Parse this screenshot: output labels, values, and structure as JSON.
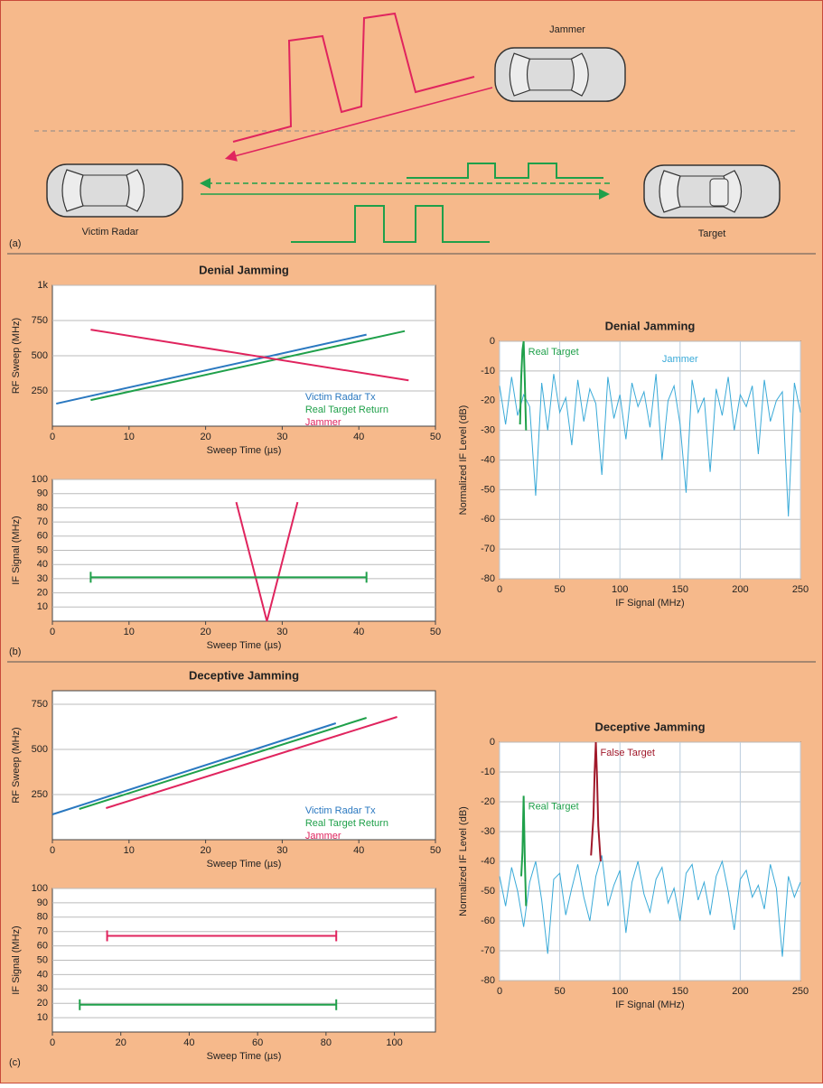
{
  "diagram": {
    "panels": [
      "(a)",
      "(b)",
      "(c)"
    ],
    "jammer": "Jammer",
    "victim": "Victim Radar",
    "target": "Target"
  },
  "chart_data": [
    {
      "type": "line",
      "title": "Denial Jamming",
      "xlabel": "Sweep Time (µs)",
      "ylabel": "RF Sweep (MHz)",
      "xlim": [
        0,
        50
      ],
      "xticks": [
        0,
        10,
        20,
        30,
        40,
        50
      ],
      "ylim": [
        0,
        1000
      ],
      "yticks": [
        250,
        500,
        750,
        {
          "value": 1000,
          "label": "1k"
        }
      ],
      "grid": "y",
      "legend": "lower right",
      "series": [
        {
          "name": "Victim Radar Tx",
          "color": "#2a78c0",
          "x": [
            0.5,
            41
          ],
          "values": [
            160,
            650
          ]
        },
        {
          "name": "Real Target Return",
          "color": "#1fa04a",
          "x": [
            5,
            46
          ],
          "values": [
            185,
            675
          ]
        },
        {
          "name": "Jammer",
          "color": "#e0245e",
          "x": [
            5,
            46.5
          ],
          "values": [
            685,
            325
          ]
        }
      ]
    },
    {
      "type": "line",
      "xlabel": "Sweep Time (µs)",
      "ylabel": "IF Signal (MHz)",
      "xlim": [
        0,
        50
      ],
      "xticks": [
        0,
        10,
        20,
        30,
        40,
        50
      ],
      "ylim": [
        0,
        100
      ],
      "yticks": [
        10,
        20,
        30,
        40,
        50,
        60,
        70,
        80,
        90,
        100
      ],
      "grid": "y",
      "end_caps": true,
      "series": [
        {
          "color": "#e0245e",
          "x": [
            24,
            28,
            32
          ],
          "values": [
            84,
            0,
            84
          ]
        },
        {
          "color": "#1fa04a",
          "x": [
            5,
            41
          ],
          "values": [
            31,
            31
          ]
        }
      ]
    },
    {
      "type": "line",
      "title": "Denial Jamming",
      "xlabel": "IF Signal (MHz)",
      "ylabel": "Normalized IF Level (dB)",
      "xlim": [
        0,
        250
      ],
      "xticks": [
        0,
        50,
        100,
        150,
        200,
        250
      ],
      "ylim": [
        -80,
        0
      ],
      "yticks": [
        -80,
        -70,
        -60,
        -50,
        -40,
        -30,
        -20,
        -10,
        0
      ],
      "grid": "both",
      "labels": "series",
      "series": [
        {
          "name": "Jammer",
          "color": "#3aaad8",
          "x": [
            0,
            5,
            10,
            15,
            20,
            25,
            30,
            35,
            40,
            45,
            50,
            55,
            60,
            65,
            70,
            75,
            80,
            85,
            90,
            95,
            100,
            105,
            110,
            115,
            120,
            125,
            130,
            135,
            140,
            145,
            150,
            155,
            160,
            165,
            170,
            175,
            180,
            185,
            190,
            195,
            200,
            205,
            210,
            215,
            220,
            225,
            230,
            235,
            240,
            245,
            250
          ],
          "values": [
            -15,
            -28,
            -12,
            -25,
            -18,
            -22,
            -52,
            -14,
            -30,
            -11,
            -24,
            -19,
            -35,
            -13,
            -27,
            -16,
            -21,
            -45,
            -12,
            -26,
            -18,
            -33,
            -14,
            -22,
            -17,
            -29,
            -11,
            -40,
            -20,
            -15,
            -28,
            -51,
            -13,
            -24,
            -19,
            -44,
            -16,
            -25,
            -12,
            -30,
            -18,
            -22,
            -15,
            -38,
            -13,
            -27,
            -20,
            -17,
            -59,
            -14,
            -24
          ]
        },
        {
          "name": "Real Target",
          "color": "#1fa04a",
          "x": [
            17,
            18,
            19,
            20,
            21,
            22
          ],
          "values": [
            -28,
            -12,
            -3,
            0,
            -14,
            -30
          ]
        }
      ]
    },
    {
      "type": "line",
      "title": "Deceptive Jamming",
      "xlabel": "Sweep Time (µs)",
      "ylabel": "RF Sweep (MHz)",
      "xlim": [
        0,
        50
      ],
      "xticks": [
        0,
        10,
        20,
        30,
        40,
        50
      ],
      "ylim": [
        0,
        825
      ],
      "yticks": [
        250,
        500,
        750
      ],
      "grid": "y",
      "legend": "lower right",
      "series": [
        {
          "name": "Victim Radar Tx",
          "color": "#2a78c0",
          "x": [
            0,
            37
          ],
          "values": [
            140,
            645
          ]
        },
        {
          "name": "Real Target Return",
          "color": "#1fa04a",
          "x": [
            3.5,
            41
          ],
          "values": [
            170,
            675
          ]
        },
        {
          "name": "Jammer",
          "color": "#e0245e",
          "x": [
            7,
            45
          ],
          "values": [
            175,
            680
          ]
        }
      ]
    },
    {
      "type": "line",
      "xlabel": "Sweep Time (µs)",
      "ylabel": "IF Signal (MHz)",
      "xlim": [
        0,
        112
      ],
      "xticks": [
        0,
        20,
        40,
        60,
        80,
        100
      ],
      "ylim": [
        0,
        100
      ],
      "yticks": [
        10,
        20,
        30,
        40,
        50,
        60,
        70,
        80,
        90,
        100
      ],
      "grid": "y",
      "end_caps": true,
      "series": [
        {
          "color": "#e0245e",
          "x": [
            16,
            83
          ],
          "values": [
            67,
            67
          ]
        },
        {
          "color": "#1fa04a",
          "x": [
            8,
            83
          ],
          "values": [
            19,
            19
          ]
        }
      ]
    },
    {
      "type": "line",
      "title": "Deceptive Jamming",
      "xlabel": "IF Signal (MHz)",
      "ylabel": "Normalized IF Level (dB)",
      "xlim": [
        0,
        250
      ],
      "xticks": [
        0,
        50,
        100,
        150,
        200,
        250
      ],
      "ylim": [
        -80,
        0
      ],
      "yticks": [
        -80,
        -70,
        -60,
        -50,
        -40,
        -30,
        -20,
        -10,
        0
      ],
      "grid": "both",
      "labels": "series",
      "series": [
        {
          "color": "#3aaad8",
          "x": [
            0,
            5,
            10,
            15,
            20,
            25,
            30,
            35,
            40,
            45,
            50,
            55,
            60,
            65,
            70,
            75,
            80,
            85,
            90,
            95,
            100,
            105,
            110,
            115,
            120,
            125,
            130,
            135,
            140,
            145,
            150,
            155,
            160,
            165,
            170,
            175,
            180,
            185,
            190,
            195,
            200,
            205,
            210,
            215,
            220,
            225,
            230,
            235,
            240,
            245,
            250
          ],
          "values": [
            -45,
            -55,
            -42,
            -50,
            -62,
            -47,
            -40,
            -53,
            -71,
            -46,
            -44,
            -58,
            -49,
            -41,
            -52,
            -60,
            -45,
            -38,
            -55,
            -48,
            -43,
            -64,
            -47,
            -40,
            -51,
            -57,
            -46,
            -42,
            -54,
            -49,
            -60,
            -44,
            -41,
            -53,
            -47,
            -58,
            -45,
            -40,
            -50,
            -63,
            -46,
            -43,
            -52,
            -48,
            -56,
            -41,
            -49,
            -72,
            -45,
            -52,
            -47
          ]
        },
        {
          "name": "Real Target",
          "color": "#1fa04a",
          "x": [
            18,
            19,
            20,
            21,
            22
          ],
          "values": [
            -45,
            -37,
            -18,
            -40,
            -55
          ]
        },
        {
          "name": "False Target",
          "color": "#a0182a",
          "x": [
            76,
            78,
            79,
            80,
            81,
            82,
            84
          ],
          "values": [
            -38,
            -25,
            -10,
            0,
            -12,
            -28,
            -40
          ]
        }
      ]
    }
  ]
}
